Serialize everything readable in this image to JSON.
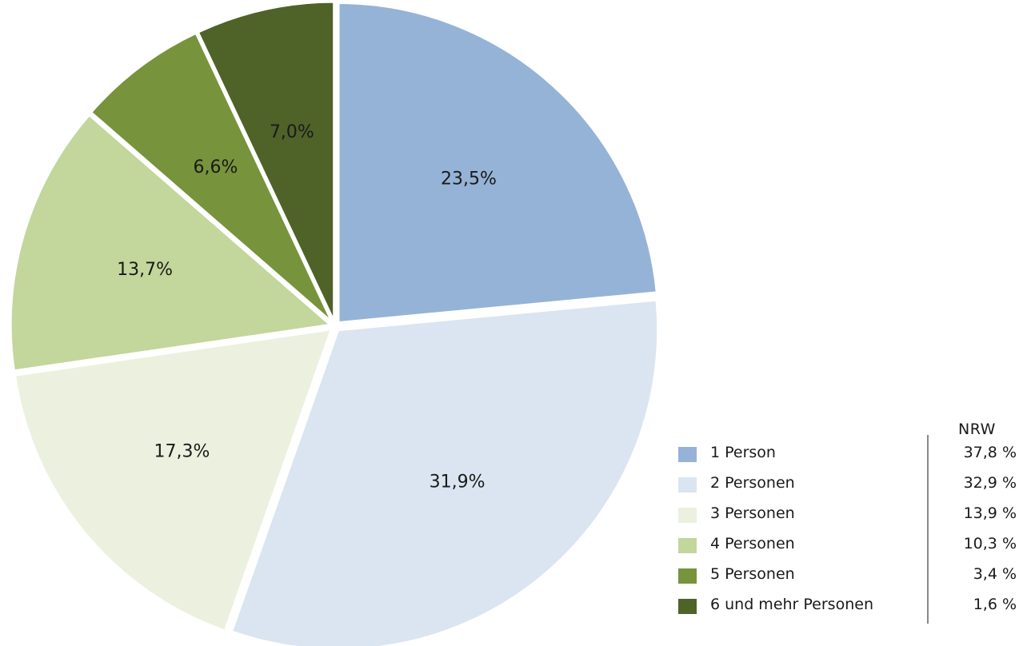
{
  "chart_data": {
    "type": "pie",
    "title": "",
    "start_angle_deg": 0,
    "direction": "clockwise",
    "categories": [
      "1 Person",
      "2 Personen",
      "3 Personen",
      "4 Personen",
      "5 Personen",
      "6 und mehr Personen"
    ],
    "values": [
      23.5,
      31.9,
      17.3,
      13.7,
      6.6,
      7.0
    ],
    "value_labels": [
      "23,5%",
      "31,9%",
      "17,3%",
      "13,7%",
      "6,6%",
      "7,0%"
    ],
    "colors": [
      "#95b3d7",
      "#dbe5f1",
      "#ebf1de",
      "#c3d69b",
      "#77933c",
      "#4f6228"
    ],
    "legend": {
      "placement": "bottom-right",
      "column_header": "NRW",
      "items": [
        {
          "label": "1 Person",
          "nrw": "37,8 %",
          "color": "#95b3d7"
        },
        {
          "label": "2 Personen",
          "nrw": "32,9 %",
          "color": "#dbe5f1"
        },
        {
          "label": "3 Personen",
          "nrw": "13,9 %",
          "color": "#ebf1de"
        },
        {
          "label": "4 Personen",
          "nrw": "10,3 %",
          "color": "#c3d69b"
        },
        {
          "label": "5 Personen",
          "nrw": "3,4 %",
          "color": "#77933c"
        },
        {
          "label": "6 und mehr Personen",
          "nrw": "1,6 %",
          "color": "#4f6228"
        }
      ]
    }
  }
}
